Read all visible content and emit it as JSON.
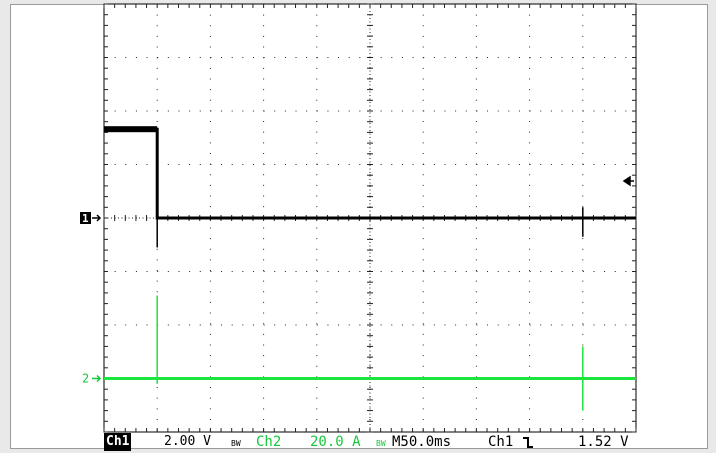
{
  "colors": {
    "background": "#ffffff",
    "grid": "#222222",
    "ch1_trace": "#000000",
    "ch2_trace": "#1ee43e",
    "ch2_text": "#16c83a"
  },
  "markers": {
    "ch1": "1",
    "ch2": "2",
    "trigger_level_icon": "left-arrow-icon"
  },
  "status": {
    "ch1_tag": "Ch1",
    "ch1_scale": "2.00 V",
    "ch1_bw": "BW",
    "ch2_label": "Ch2",
    "ch2_scale": "20.0 A",
    "ch2_bw": "BW",
    "timebase": "M50.0ms",
    "trigger_source": "Ch1",
    "trigger_slope_icon": "falling-edge-icon",
    "trigger_level": "1.52 V"
  },
  "chart_data": {
    "type": "line",
    "grid": {
      "divisions_x": 10,
      "divisions_y": 8,
      "on": true
    },
    "x_units": "divisions",
    "y_units": "divisions",
    "series": [
      {
        "channel": "Ch1",
        "x": [
          0,
          1.0,
          1.0,
          10
        ],
        "y": [
          1.66,
          1.66,
          0,
          0
        ],
        "spikes": [
          {
            "x": 1.0,
            "ymin": -0.55,
            "ymax": 0.95
          },
          {
            "x": 9.0,
            "ymin": -0.35,
            "ymax": 0.2
          }
        ]
      },
      {
        "channel": "Ch2",
        "x": [
          0,
          10
        ],
        "y": [
          -3.0,
          -3.0
        ],
        "spikes": [
          {
            "x": 1.0,
            "ymin": -3.1,
            "ymax": -1.45
          },
          {
            "x": 9.0,
            "ymin": -3.6,
            "ymax": -2.4
          }
        ]
      }
    ]
  }
}
